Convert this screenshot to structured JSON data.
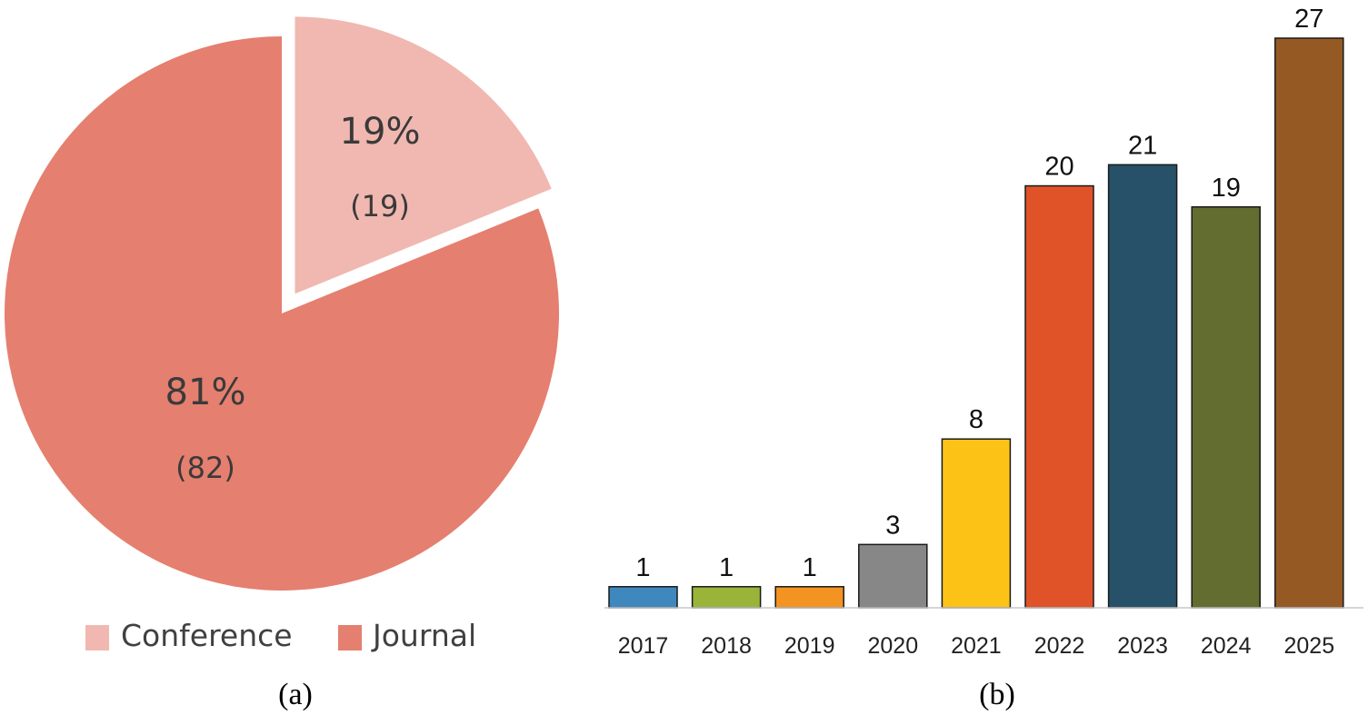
{
  "chart_data": [
    {
      "type": "pie",
      "slices": [
        {
          "label": "Conference",
          "value": 19,
          "percent": "19%",
          "count_label": "(19)",
          "color": "#f0b8b0",
          "exploded": true
        },
        {
          "label": "Journal",
          "value": 82,
          "percent": "81%",
          "count_label": "(82)",
          "color": "#e57f6f",
          "exploded": false
        }
      ],
      "legend": [
        "Conference",
        "Journal"
      ],
      "legend_position": "bottom",
      "panel_label": "(a)"
    },
    {
      "type": "bar",
      "categories": [
        "2017",
        "2018",
        "2019",
        "2020",
        "2021",
        "2022",
        "2023",
        "2024",
        "2025"
      ],
      "values": [
        1,
        1,
        1,
        3,
        8,
        20,
        21,
        19,
        27
      ],
      "value_labels": [
        "1",
        "1",
        "1",
        "3",
        "8",
        "20",
        "21",
        "19",
        "27"
      ],
      "colors": [
        "#3f88bd",
        "#9ab43a",
        "#f39321",
        "#878787",
        "#fcc316",
        "#e05329",
        "#275168",
        "#626d2f",
        "#955a23"
      ],
      "ylim": [
        0,
        27
      ],
      "grid": false,
      "panel_label": "(b)"
    }
  ]
}
